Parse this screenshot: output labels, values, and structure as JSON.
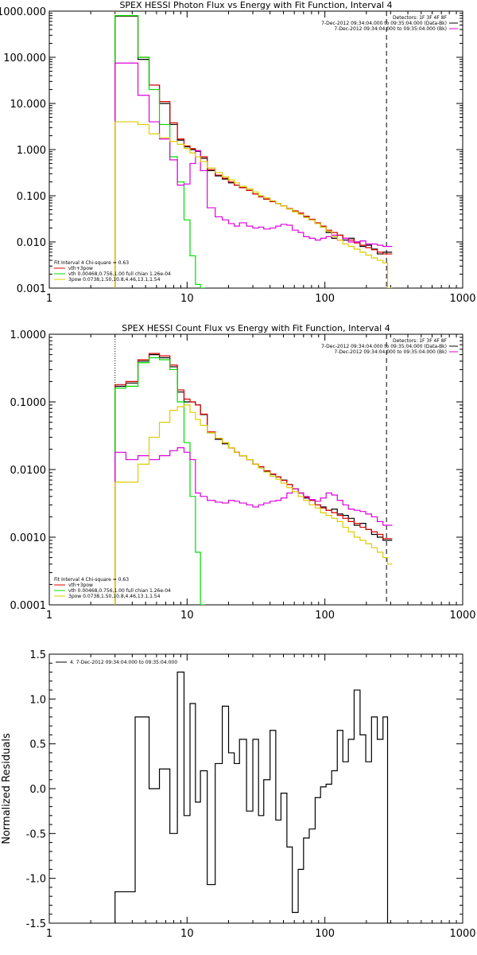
{
  "chart_data": [
    {
      "type": "line",
      "title": "SPEX HESSI Photon Flux vs Energy with Fit Function, Interval 4",
      "xscale": "log",
      "yscale": "log",
      "xlim": [
        1,
        1000
      ],
      "ylim": [
        0.001,
        1000
      ],
      "xticks": [
        {
          "v": 1,
          "label": "1"
        },
        {
          "v": 10,
          "label": "10"
        },
        {
          "v": 100,
          "label": "100"
        },
        {
          "v": 1000,
          "label": "1000"
        }
      ],
      "yticks": [
        {
          "v": 0.001,
          "label": "0.001"
        },
        {
          "v": 0.01,
          "label": "0.010"
        },
        {
          "v": 0.1,
          "label": "0.100"
        },
        {
          "v": 1,
          "label": "1.000"
        },
        {
          "v": 10,
          "label": "10.000"
        },
        {
          "v": 100,
          "label": "100.000"
        },
        {
          "v": 1000,
          "label": "1000.000"
        }
      ],
      "vlines": [
        {
          "x": 3,
          "color": "#cc7700",
          "style": "dotted"
        },
        {
          "x": 280,
          "color": "#000000",
          "style": "dashed"
        }
      ],
      "legend_topright": [
        "Detectors: 1F 3F 4F 8F",
        "7-Dec-2012 09:34:04.000 to 09:35:04.000 (Data-Bk)",
        "7-Dec-2012 09:34:04.000 to 09:35:04.000 (Bk)"
      ],
      "legend_bottomleft": [
        "Fit Interval 4   Chi-square = 0.63",
        "vth+3pow",
        "vth 0.00468,0.756,1.00  full chian 1.26e-04",
        "3pow 0.0738,1.50,10.8,4.46,13.1,1.54"
      ],
      "series": [
        {
          "color": "#000000",
          "x": [
            3,
            3.6,
            4.4,
            5.3,
            6.3,
            7.5,
            8.5,
            9.5,
            10.5,
            11.5,
            12.5,
            14,
            16,
            18,
            20,
            22,
            24,
            27,
            30,
            33,
            36,
            40,
            44,
            48,
            53,
            58,
            64,
            70,
            77,
            85,
            93,
            102,
            112,
            123,
            135,
            148,
            163,
            180,
            198,
            218,
            240,
            264,
            285
          ],
          "y": [
            780,
            780,
            90,
            25,
            10,
            3.5,
            1.6,
            1.15,
            1,
            0.92,
            0.65,
            0.35,
            0.27,
            0.23,
            0.19,
            0.17,
            0.15,
            0.13,
            0.11,
            0.095,
            0.085,
            0.075,
            0.068,
            0.06,
            0.052,
            0.046,
            0.042,
            0.035,
            0.03,
            0.025,
            0.021,
            0.016,
            0.012,
            0.014,
            0.011,
            0.012,
            0.01,
            0.008,
            0.0085,
            0.007,
            0.0055,
            0.006,
            0.006
          ]
        },
        {
          "color": "#dd0000",
          "x": [
            3,
            3.6,
            4.4,
            5.3,
            6.3,
            7.5,
            8.5,
            9.5,
            10.5,
            11.5,
            12.5,
            14,
            16,
            18,
            20,
            22,
            24,
            27,
            30,
            33,
            36,
            40,
            44,
            48,
            53,
            58,
            64,
            70,
            77,
            85,
            93,
            102,
            112,
            123,
            135,
            148,
            163,
            180,
            198,
            218,
            240,
            264,
            285
          ],
          "y": [
            800,
            800,
            100,
            25,
            11,
            3.8,
            1.7,
            1.2,
            1.05,
            0.95,
            0.7,
            0.37,
            0.28,
            0.24,
            0.2,
            0.17,
            0.15,
            0.13,
            0.11,
            0.095,
            0.085,
            0.075,
            0.068,
            0.06,
            0.053,
            0.047,
            0.042,
            0.036,
            0.031,
            0.026,
            0.022,
            0.018,
            0.016,
            0.014,
            0.012,
            0.011,
            0.0095,
            0.0085,
            0.0075,
            0.0068,
            0.006,
            0.0055,
            0.0055
          ]
        },
        {
          "color": "#00dd00",
          "x": [
            3,
            3.6,
            4.4,
            5.3,
            6.3,
            7.5,
            8.5,
            9.5,
            10.5,
            11.5,
            12.5
          ],
          "y": [
            800,
            800,
            100,
            20,
            3.5,
            0.7,
            0.2,
            0.03,
            0.005,
            0.0012,
            0.001
          ]
        },
        {
          "color": "#dd00dd",
          "x": [
            3,
            3.6,
            4.4,
            5.3,
            6.3,
            7.5,
            8.5,
            9.5,
            10.5,
            11.5,
            12.5,
            14,
            16,
            18,
            20,
            22,
            24,
            27,
            30,
            33,
            36,
            40,
            44,
            48,
            53,
            58,
            64,
            70,
            77,
            85,
            93,
            102,
            112,
            123,
            135,
            148,
            163,
            180,
            198,
            218,
            240,
            264,
            285
          ],
          "y": [
            75,
            75,
            15,
            4,
            1.7,
            0.6,
            0.17,
            0.18,
            0.5,
            0.95,
            0.35,
            0.055,
            0.035,
            0.03,
            0.025,
            0.022,
            0.026,
            0.022,
            0.02,
            0.021,
            0.019,
            0.02,
            0.022,
            0.024,
            0.023,
            0.018,
            0.016,
            0.013,
            0.012,
            0.011,
            0.012,
            0.013,
            0.014,
            0.011,
            0.012,
            0.01,
            0.01,
            0.0105,
            0.009,
            0.009,
            0.0085,
            0.008,
            0.008
          ]
        },
        {
          "color": "#ddcc00",
          "x": [
            3,
            3.6,
            4.4,
            5.3,
            6.3,
            7.5,
            8.5,
            9.5,
            10.5,
            11.5,
            12.5,
            14,
            16,
            18,
            20,
            22,
            24,
            27,
            30,
            33,
            36,
            40,
            44,
            48,
            53,
            58,
            64,
            70,
            77,
            85,
            93,
            102,
            112,
            123,
            135,
            148,
            163,
            180,
            198,
            218,
            240,
            264,
            285
          ],
          "y": [
            4,
            4,
            3.5,
            2.2,
            1.8,
            1.5,
            1.3,
            1.05,
            0.85,
            0.7,
            0.55,
            0.4,
            0.32,
            0.26,
            0.22,
            0.19,
            0.16,
            0.14,
            0.12,
            0.1,
            0.09,
            0.078,
            0.068,
            0.06,
            0.052,
            0.045,
            0.04,
            0.034,
            0.03,
            0.025,
            0.021,
            0.017,
            0.013,
            0.011,
            0.009,
            0.008,
            0.007,
            0.006,
            0.0052,
            0.0045,
            0.004,
            0.0035,
            0.001
          ]
        }
      ]
    },
    {
      "type": "line",
      "title": "SPEX HESSI Count Flux vs Energy with Fit Function, Interval 4",
      "xscale": "log",
      "yscale": "log",
      "xlim": [
        1,
        1000
      ],
      "ylim": [
        0.0001,
        1
      ],
      "xticks": [
        {
          "v": 1,
          "label": "1"
        },
        {
          "v": 10,
          "label": "10"
        },
        {
          "v": 100,
          "label": "100"
        },
        {
          "v": 1000,
          "label": "1000"
        }
      ],
      "yticks": [
        {
          "v": 0.0001,
          "label": "0.0001"
        },
        {
          "v": 0.001,
          "label": "0.0010"
        },
        {
          "v": 0.01,
          "label": "0.0100"
        },
        {
          "v": 0.1,
          "label": "0.1000"
        },
        {
          "v": 1,
          "label": "1.0000"
        }
      ],
      "vlines": [
        {
          "x": 3,
          "color": "#000000",
          "style": "dotted"
        },
        {
          "x": 280,
          "color": "#000000",
          "style": "dashed"
        }
      ],
      "legend_topright": [
        "Detectors: 1F 3F 4F 8F",
        "7-Dec-2012 09:34:04.000 to 09:35:04.000 (Data-Bk)",
        "7-Dec-2012 09:34:04.000 to 09:35:04.000 (Bk)"
      ],
      "legend_bottomleft": [
        "Fit Interval 4   Chi-square = 0.63",
        "vth+3pow",
        "vth 0.00468,0.756,1.00  full chian 1.26e-04",
        "3pow 0.0738,1.50,10.8,4.46,13.1,1.54"
      ],
      "series": [
        {
          "color": "#000000",
          "x": [
            3,
            3.6,
            4.4,
            5.3,
            6.3,
            7.5,
            8.5,
            9.5,
            10.5,
            11.5,
            12.5,
            14,
            16,
            18,
            20,
            22,
            24,
            27,
            30,
            33,
            36,
            40,
            44,
            48,
            53,
            58,
            64,
            70,
            77,
            85,
            93,
            102,
            112,
            123,
            135,
            148,
            163,
            180,
            198,
            218,
            240,
            264,
            285
          ],
          "y": [
            0.17,
            0.19,
            0.4,
            0.5,
            0.45,
            0.33,
            0.14,
            0.1,
            0.1,
            0.09,
            0.065,
            0.035,
            0.028,
            0.024,
            0.021,
            0.018,
            0.016,
            0.014,
            0.012,
            0.011,
            0.0095,
            0.0085,
            0.0078,
            0.007,
            0.006,
            0.0052,
            0.0045,
            0.0038,
            0.0035,
            0.003,
            0.0028,
            0.0025,
            0.0026,
            0.0022,
            0.0021,
            0.0019,
            0.0015,
            0.0016,
            0.0013,
            0.0011,
            0.001,
            0.0009,
            0.0009
          ]
        },
        {
          "color": "#dd0000",
          "x": [
            3,
            3.6,
            4.4,
            5.3,
            6.3,
            7.5,
            8.5,
            9.5,
            10.5,
            11.5,
            12.5,
            14,
            16,
            18,
            20,
            22,
            24,
            27,
            30,
            33,
            36,
            40,
            44,
            48,
            53,
            58,
            64,
            70,
            77,
            85,
            93,
            102,
            112,
            123,
            135,
            148,
            163,
            180,
            198,
            218,
            240,
            264,
            285
          ],
          "y": [
            0.18,
            0.2,
            0.42,
            0.52,
            0.48,
            0.35,
            0.15,
            0.11,
            0.1,
            0.09,
            0.066,
            0.036,
            0.029,
            0.025,
            0.021,
            0.018,
            0.016,
            0.014,
            0.012,
            0.011,
            0.0096,
            0.0086,
            0.0078,
            0.0069,
            0.006,
            0.0052,
            0.0045,
            0.0039,
            0.0035,
            0.003,
            0.0027,
            0.0025,
            0.0023,
            0.0021,
            0.0019,
            0.0017,
            0.0016,
            0.0014,
            0.0013,
            0.0012,
            0.0011,
            0.00095,
            0.00095
          ]
        },
        {
          "color": "#00dd00",
          "x": [
            3,
            3.6,
            4.4,
            5.3,
            6.3,
            7.5,
            8.5,
            9.5,
            10.5,
            11.5,
            12.5
          ],
          "y": [
            0.16,
            0.17,
            0.38,
            0.45,
            0.42,
            0.3,
            0.1,
            0.025,
            0.004,
            0.0006,
            0.0001
          ]
        },
        {
          "color": "#dd00dd",
          "x": [
            3,
            3.6,
            4.4,
            5.3,
            6.3,
            7.5,
            8.5,
            9.5,
            10.5,
            11.5,
            12.5,
            14,
            16,
            18,
            20,
            22,
            24,
            27,
            30,
            33,
            36,
            40,
            44,
            48,
            53,
            58,
            64,
            70,
            77,
            85,
            93,
            102,
            112,
            123,
            135,
            148,
            163,
            180,
            198,
            218,
            240,
            264,
            285
          ],
          "y": [
            0.018,
            0.014,
            0.016,
            0.014,
            0.016,
            0.019,
            0.021,
            0.018,
            0.014,
            0.0045,
            0.004,
            0.0035,
            0.0033,
            0.0032,
            0.0035,
            0.0034,
            0.0032,
            0.003,
            0.0028,
            0.003,
            0.0032,
            0.0034,
            0.0035,
            0.0038,
            0.0045,
            0.0052,
            0.0045,
            0.004,
            0.0036,
            0.0034,
            0.0038,
            0.0045,
            0.0042,
            0.0035,
            0.003,
            0.0026,
            0.0025,
            0.0024,
            0.0022,
            0.002,
            0.0017,
            0.0015,
            0.0015
          ]
        },
        {
          "color": "#ddcc00",
          "x": [
            3,
            3.6,
            4.4,
            5.3,
            6.3,
            7.5,
            8.5,
            9.5,
            10.5,
            11.5,
            12.5,
            14,
            16,
            18,
            20,
            22,
            24,
            27,
            30,
            33,
            36,
            40,
            44,
            48,
            53,
            58,
            64,
            70,
            77,
            85,
            93,
            102,
            112,
            123,
            135,
            148,
            163,
            180,
            198,
            218,
            240,
            264,
            285
          ],
          "y": [
            0.0065,
            0.0065,
            0.012,
            0.03,
            0.05,
            0.075,
            0.085,
            0.09,
            0.07,
            0.055,
            0.045,
            0.035,
            0.029,
            0.025,
            0.021,
            0.018,
            0.016,
            0.014,
            0.012,
            0.0105,
            0.0092,
            0.008,
            0.0072,
            0.0063,
            0.0054,
            0.0047,
            0.004,
            0.0035,
            0.003,
            0.0027,
            0.0023,
            0.0021,
            0.0019,
            0.0017,
            0.0014,
            0.0012,
            0.001,
            0.0009,
            0.0008,
            0.0007,
            0.0006,
            0.0005,
            0.0004
          ]
        }
      ]
    },
    {
      "type": "line",
      "title": "",
      "ylabel": "Normalized Residuals",
      "xscale": "log",
      "yscale": "linear",
      "xlim": [
        1,
        1000
      ],
      "ylim": [
        -1.5,
        1.5
      ],
      "xticks": [
        {
          "v": 1,
          "label": "1"
        },
        {
          "v": 10,
          "label": "10"
        },
        {
          "v": 100,
          "label": "100"
        },
        {
          "v": 1000,
          "label": "1000"
        }
      ],
      "yticks": [
        {
          "v": -1.5,
          "label": "-1.5"
        },
        {
          "v": -1,
          "label": "-1.0"
        },
        {
          "v": -0.5,
          "label": "-0.5"
        },
        {
          "v": 0,
          "label": "0.0"
        },
        {
          "v": 0.5,
          "label": "0.5"
        },
        {
          "v": 1,
          "label": "1.0"
        },
        {
          "v": 1.5,
          "label": "1.5"
        }
      ],
      "legend_topleft": [
        "4. 7-Dec-2012 09:34:04.000 to 09:35:04.000"
      ],
      "series": [
        {
          "color": "#000000",
          "x": [
            3,
            4.2,
            5.3,
            6.3,
            7.5,
            8.5,
            9.5,
            10.5,
            11.5,
            12.5,
            14,
            16,
            18,
            20,
            22,
            24,
            27,
            30,
            33,
            36,
            40,
            44,
            48,
            53,
            58,
            64,
            70,
            77,
            85,
            93,
            102,
            112,
            123,
            135,
            148,
            163,
            180,
            198,
            218,
            240,
            264,
            285
          ],
          "y": [
            -1.15,
            0.8,
            0,
            0.22,
            -0.5,
            1.3,
            -0.3,
            0.95,
            -0.15,
            0.2,
            -1.07,
            0.28,
            0.92,
            0.4,
            0.28,
            0.55,
            -0.25,
            0.55,
            -0.3,
            0.1,
            0.65,
            -0.35,
            -0.05,
            -0.65,
            -1.38,
            -0.9,
            -0.55,
            -0.45,
            -0.1,
            0.02,
            0.05,
            0.2,
            0.65,
            0.3,
            0.55,
            1.1,
            0.6,
            0.3,
            0.8,
            0.55,
            0.8,
            -1.5
          ]
        }
      ]
    }
  ]
}
